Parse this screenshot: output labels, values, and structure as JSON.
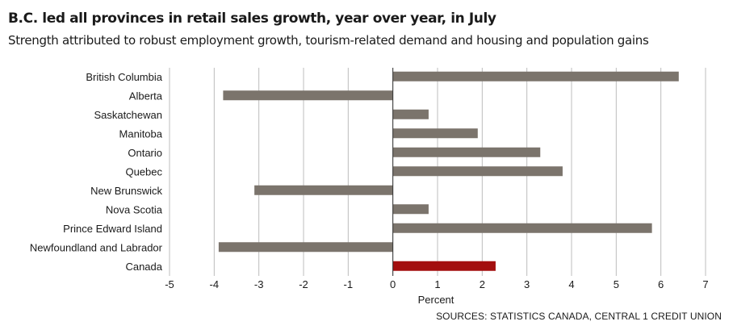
{
  "header": {
    "title": "B.C. led all provinces in retail sales growth, year over year, in July",
    "subtitle": "Strength attributed to robust employment growth, tourism-related demand and housing and population gains"
  },
  "source": "SOURCES: STATISTICS CANADA, CENTRAL 1 CREDIT UNION",
  "chart_data": {
    "type": "bar",
    "orientation": "horizontal",
    "categories": [
      "British Columbia",
      "Alberta",
      "Saskatchewan",
      "Manitoba",
      "Ontario",
      "Quebec",
      "New Brunswick",
      "Nova Scotia",
      "Prince Edward Island",
      "Newfoundland and Labrador",
      "Canada"
    ],
    "values": [
      6.4,
      -3.8,
      0.8,
      1.9,
      3.3,
      3.8,
      -3.1,
      0.8,
      5.8,
      -3.9,
      2.3
    ],
    "xlabel": "Percent",
    "ylabel": "",
    "xlim": [
      -5,
      7
    ],
    "xticks": [
      -5,
      -4,
      -3,
      -2,
      -1,
      0,
      1,
      2,
      3,
      4,
      5,
      6,
      7
    ],
    "grid": "vertical",
    "colors": {
      "bar": "#7b746c",
      "highlight": "#a30f0f",
      "grid": "#bcbcbc"
    },
    "highlight_category": "Canada"
  }
}
